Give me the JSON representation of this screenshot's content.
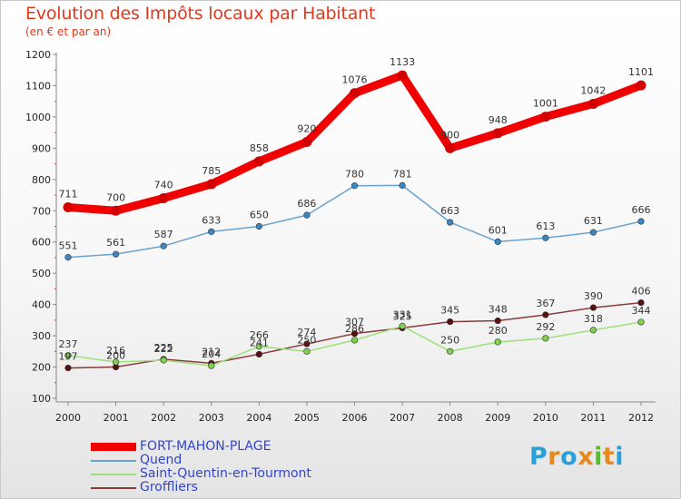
{
  "title": "Evolution des Impôts locaux par Habitant",
  "subtitle": "(en € et par an)",
  "logo": {
    "letters": [
      "P",
      "r",
      "o",
      "x",
      "i",
      "t",
      "i"
    ],
    "colors": [
      "#2aa0d8",
      "#e8891d",
      "#2aa0d8",
      "#e8891d",
      "#5cb82e",
      "#e8891d",
      "#2aa0d8"
    ]
  },
  "chart_data": {
    "type": "line",
    "x": [
      "2000",
      "2001",
      "2002",
      "2003",
      "2004",
      "2005",
      "2006",
      "2007",
      "2008",
      "2009",
      "2010",
      "2011",
      "2012"
    ],
    "ylim": [
      100,
      1200
    ],
    "yticks": [
      100,
      200,
      300,
      400,
      500,
      600,
      700,
      800,
      900,
      1000,
      1100,
      1200
    ],
    "grid": false,
    "legend_position": "bottom-left",
    "series": [
      {
        "name": "FORT-MAHON-PLAGE",
        "values": [
          711,
          700,
          740,
          785,
          858,
          920,
          1076,
          1133,
          900,
          948,
          1001,
          1042,
          1101
        ],
        "labels": [
          "711",
          "700",
          "740",
          "785",
          "858",
          "920",
          "1076",
          "1133",
          "900",
          "948",
          "1001",
          "1042",
          "1101"
        ],
        "color": "#f00000",
        "marker": "#d40000",
        "legend_text_color": "#3344cc",
        "bold": true
      },
      {
        "name": "Quend",
        "values": [
          551,
          561,
          587,
          633,
          650,
          686,
          780,
          781,
          663,
          601,
          613,
          631,
          666
        ],
        "labels": [
          "551",
          "561",
          "587",
          "633",
          "650",
          "686",
          "780",
          "781",
          "663",
          "601",
          "613",
          "631",
          "666"
        ],
        "color": "#6aa3d0",
        "marker": "#3c86c4",
        "legend_text_color": "#3344cc",
        "bold": false
      },
      {
        "name": "Saint-Quentin-en-Tourmont",
        "values": [
          237,
          216,
          222,
          204,
          266,
          250,
          286,
          331,
          250,
          280,
          292,
          318,
          344
        ],
        "labels": [
          "237",
          "216",
          "222",
          "204",
          "266",
          "250",
          "286",
          "331",
          "250",
          "280",
          "292",
          "318",
          "344"
        ],
        "color": "#9de07a",
        "marker": "#7ed24f",
        "legend_text_color": "#3344cc",
        "bold": false
      },
      {
        "name": "Groffliers",
        "values": [
          197,
          200,
          225,
          212,
          241,
          274,
          307,
          325,
          345,
          348,
          367,
          390,
          406
        ],
        "labels": [
          "197",
          "200",
          "225",
          "212",
          "241",
          "274",
          "307",
          "325",
          "345",
          "348",
          "367",
          "390",
          "406"
        ],
        "color": "#8a3a3a",
        "marker": "#5a1010",
        "legend_text_color": "#3344cc",
        "bold": false
      }
    ]
  }
}
